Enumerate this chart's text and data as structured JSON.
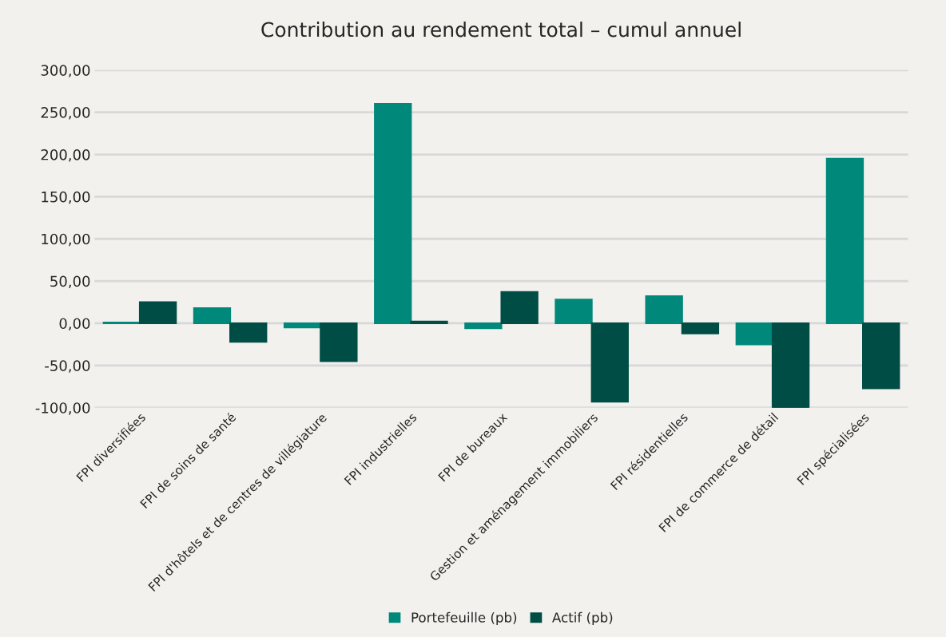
{
  "chart_data": {
    "type": "bar",
    "title": "Contribution au rendement total – cumul annuel",
    "categories": [
      "FPI diversifiées",
      "FPI de soins de santé",
      "FPI d'hôtels et de centres de villégiature",
      "FPI industrielles",
      "FPI de bureaux",
      "Gestion et aménagement immobiliers",
      "FPI résidentielles",
      "FPI de commerce de détail",
      "FPI spécialisées"
    ],
    "series": [
      {
        "name": "Portefeuille (pb)",
        "color": "#00897b",
        "values": [
          1,
          18,
          -5,
          260,
          -6,
          28,
          32,
          -25,
          195
        ]
      },
      {
        "name": "Actif (pb)",
        "color": "#004d45",
        "values": [
          25,
          -22,
          -45,
          2,
          37,
          -93,
          -12,
          -100,
          -77
        ]
      }
    ],
    "ylim": [
      -100,
      300
    ],
    "yticks": [
      {
        "value": -100,
        "label": "-100,00"
      },
      {
        "value": -50,
        "label": "-50,00"
      },
      {
        "value": 0,
        "label": "0,00"
      },
      {
        "value": 50,
        "label": "50,00"
      },
      {
        "value": 100,
        "label": "100,00"
      },
      {
        "value": 150,
        "label": "150,00"
      },
      {
        "value": 200,
        "label": "200,00"
      },
      {
        "value": 250,
        "label": "250,00"
      },
      {
        "value": 300,
        "label": "300,00"
      }
    ],
    "grid": "y",
    "legend": "bottom"
  }
}
